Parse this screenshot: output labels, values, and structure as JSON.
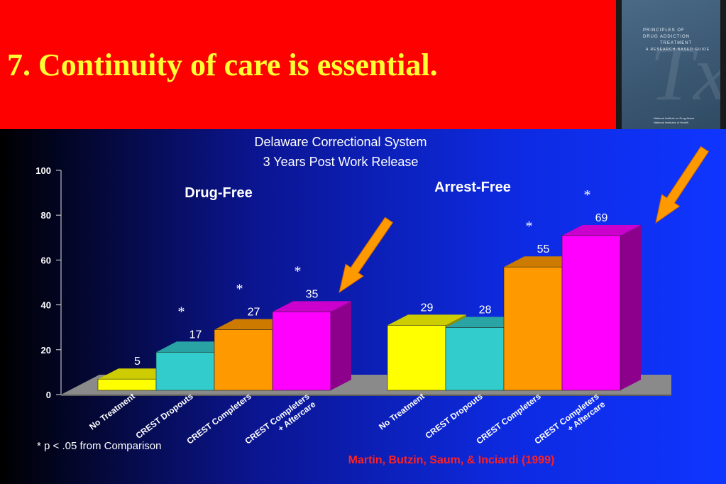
{
  "slide": {
    "title": "7. Continuity of care is essential.",
    "book_cover": {
      "lines": [
        "PRINCIPLES OF",
        "DRUG ADDICTION",
        "TREATMENT",
        "A RESEARCH-BASED GUIDE"
      ],
      "publisher": [
        "National Institute on Drug Abuse",
        "National Institutes of Health"
      ]
    },
    "footnote": "* p < .05 from Comparison",
    "citation": "Martin, Butzin, Saum, & Inciardi (1999)"
  },
  "chart_data": {
    "type": "bar",
    "title": "Delaware Correctional System",
    "subtitle": "3 Years Post Work Release",
    "ylim": [
      0,
      100
    ],
    "yticks": [
      0,
      20,
      40,
      60,
      80,
      100
    ],
    "groups": [
      {
        "label": "Drug-Free",
        "categories": [
          "No Treatment",
          "CREST Dropouts",
          "CREST Completers",
          "CREST Completers\n+ Aftercare"
        ],
        "values": [
          5,
          17,
          27,
          35
        ],
        "significant": [
          false,
          true,
          true,
          true
        ]
      },
      {
        "label": "Arrest-Free",
        "categories": [
          "No Treatment",
          "CREST Dropouts",
          "CREST Completers",
          "CREST Completers\n+ Aftercare"
        ],
        "values": [
          29,
          28,
          55,
          69
        ],
        "significant": [
          false,
          false,
          true,
          true
        ]
      }
    ],
    "significance_marker": "*",
    "colors": [
      "#ffff00",
      "#33cccc",
      "#ff9900",
      "#ff00ff"
    ],
    "arrow_color": "#ff9900"
  }
}
